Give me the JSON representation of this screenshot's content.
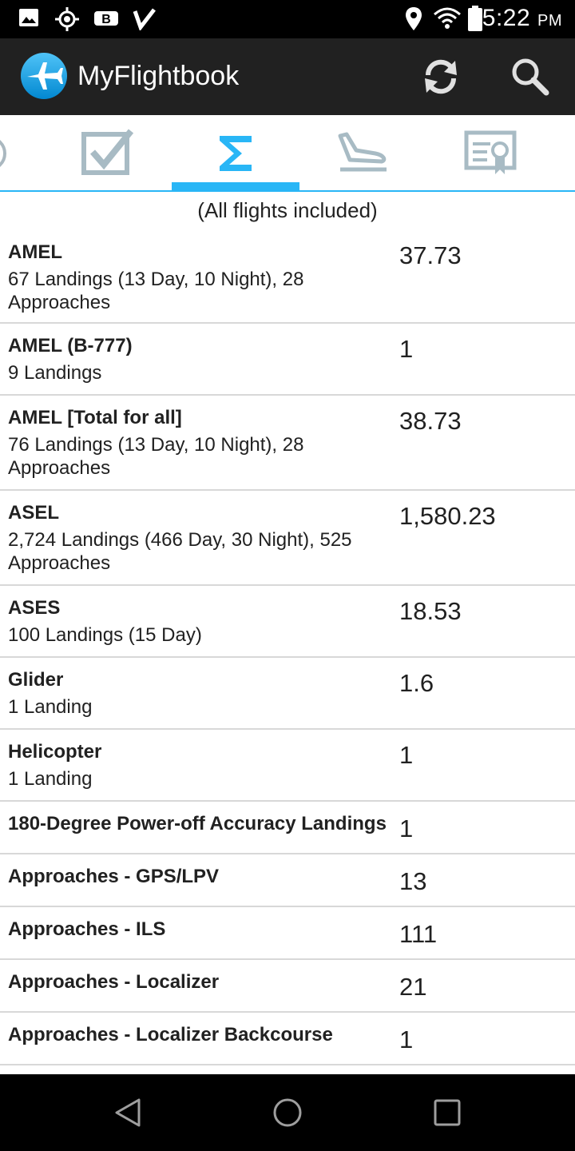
{
  "status_bar": {
    "time": "5:22",
    "ampm": "PM",
    "left_icons": [
      "image-icon",
      "gps-icon",
      "b-app-icon",
      "checkmark-app-icon"
    ],
    "right_icons": [
      "location-icon",
      "wifi-icon",
      "battery-icon"
    ]
  },
  "app_bar": {
    "title": "MyFlightbook",
    "actions": [
      "refresh-icon",
      "search-icon"
    ]
  },
  "tabs": {
    "items": [
      "partial-tab-icon",
      "checkbox-icon",
      "sigma-icon",
      "landing-plane-icon",
      "certificate-icon"
    ],
    "selected_index": 2,
    "accent_color": "#29b6f6"
  },
  "caption": "(All flights included)",
  "rows": [
    {
      "title": "AMEL",
      "sub": "67 Landings (13 Day, 10 Night), 28 Approaches",
      "value": "37.73"
    },
    {
      "title": "AMEL (B-777)",
      "sub": "9 Landings",
      "value": "1"
    },
    {
      "title": "AMEL [Total for all]",
      "sub": "76 Landings (13 Day, 10 Night), 28 Approaches",
      "value": "38.73"
    },
    {
      "title": "ASEL",
      "sub": "2,724 Landings (466 Day, 30 Night), 525 Approaches",
      "value": "1,580.23"
    },
    {
      "title": "ASES",
      "sub": "100 Landings (15 Day)",
      "value": "18.53"
    },
    {
      "title": "Glider",
      "sub": "1 Landing",
      "value": "1.6"
    },
    {
      "title": "Helicopter",
      "sub": "1 Landing",
      "value": "1"
    },
    {
      "title": "180-Degree Power-off Accuracy Landings",
      "sub": "",
      "value": "1"
    },
    {
      "title": "Approaches - GPS/LPV",
      "sub": "",
      "value": "13"
    },
    {
      "title": "Approaches - ILS",
      "sub": "",
      "value": "111"
    },
    {
      "title": "Approaches - Localizer",
      "sub": "",
      "value": "21"
    },
    {
      "title": "Approaches - Localizer Backcourse",
      "sub": "",
      "value": "1"
    }
  ],
  "nav_bar": [
    "back-icon",
    "home-icon",
    "recents-icon"
  ]
}
